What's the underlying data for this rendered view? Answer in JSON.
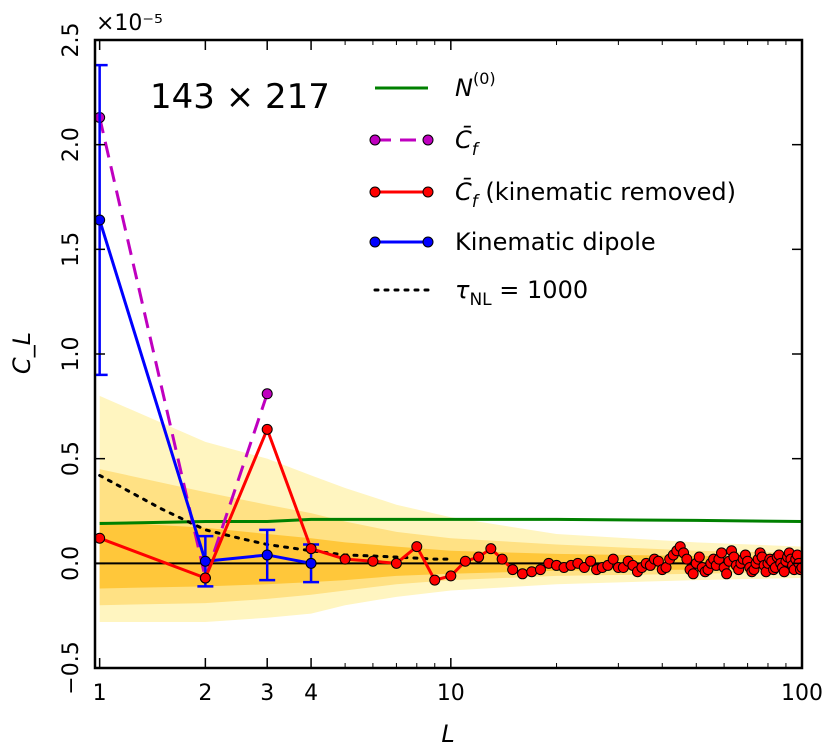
{
  "chart_data": {
    "type": "line",
    "panel_label": "143 × 217",
    "xlabel": "L",
    "ylabel": "C_L",
    "x_scale": "log",
    "xlim": [
      0.97,
      100
    ],
    "ylim": [
      -0.5,
      2.5
    ],
    "y_multiplier": "×10⁻⁵",
    "x_ticks": [
      1,
      2,
      3,
      4,
      10,
      100
    ],
    "x_tick_labels": [
      "1",
      "2",
      "3",
      "4",
      "10",
      "100"
    ],
    "y_ticks": [
      -0.5,
      0.0,
      0.5,
      1.0,
      1.5,
      2.0,
      2.5
    ],
    "y_tick_labels": [
      "−0.5",
      "0.0",
      "0.5",
      "1.0",
      "1.5",
      "2.0",
      "2.5"
    ],
    "legend": {
      "placement": "top-right",
      "entries": [
        {
          "label_main": "N",
          "label_sup": "(0)",
          "label_rest": "",
          "color": "#008000",
          "style": "solid",
          "marker": "none"
        },
        {
          "label_main": "C̄",
          "label_sub": "f",
          "label_rest": "",
          "color": "#bf00bf",
          "style": "dashed",
          "marker": "circle"
        },
        {
          "label_main": "C̄",
          "label_sub": "f",
          "label_rest": " (kinematic removed)",
          "color": "#ff0000",
          "style": "solid",
          "marker": "circle"
        },
        {
          "label_main": "Kinematic dipole",
          "label_rest": "",
          "color": "#0000ff",
          "style": "solid",
          "marker": "circle"
        },
        {
          "label_main": "τ",
          "label_sub": "NL",
          "label_rest": " = 1000",
          "color": "#000000",
          "style": "dotted",
          "marker": "none"
        }
      ]
    },
    "bands": {
      "outer": {
        "color": "#fff5c0",
        "upper": [
          [
            1,
            0.8
          ],
          [
            2,
            0.58
          ],
          [
            3,
            0.5
          ],
          [
            4,
            0.42
          ],
          [
            5,
            0.36
          ],
          [
            7,
            0.28
          ],
          [
            10,
            0.22
          ],
          [
            20,
            0.14
          ],
          [
            50,
            0.1
          ],
          [
            100,
            0.08
          ]
        ],
        "lower": [
          [
            1,
            -0.28
          ],
          [
            2,
            -0.28
          ],
          [
            3,
            -0.26
          ],
          [
            4,
            -0.24
          ],
          [
            5,
            -0.2
          ],
          [
            7,
            -0.16
          ],
          [
            10,
            -0.13
          ],
          [
            20,
            -0.1
          ],
          [
            50,
            -0.08
          ],
          [
            100,
            -0.07
          ]
        ]
      },
      "middle": {
        "color": "#ffe184",
        "upper": [
          [
            1,
            0.45
          ],
          [
            2,
            0.34
          ],
          [
            3,
            0.28
          ],
          [
            4,
            0.24
          ],
          [
            5,
            0.2
          ],
          [
            7,
            0.15
          ],
          [
            10,
            0.12
          ],
          [
            20,
            0.09
          ],
          [
            50,
            0.06
          ],
          [
            100,
            0.05
          ]
        ],
        "lower": [
          [
            1,
            -0.2
          ],
          [
            2,
            -0.19
          ],
          [
            3,
            -0.17
          ],
          [
            4,
            -0.15
          ],
          [
            5,
            -0.13
          ],
          [
            7,
            -0.1
          ],
          [
            10,
            -0.08
          ],
          [
            20,
            -0.06
          ],
          [
            50,
            -0.05
          ],
          [
            100,
            -0.04
          ]
        ]
      },
      "inner": {
        "color": "#ffc73a",
        "upper": [
          [
            1,
            0.2
          ],
          [
            2,
            0.17
          ],
          [
            3,
            0.14
          ],
          [
            4,
            0.12
          ],
          [
            5,
            0.1
          ],
          [
            7,
            0.08
          ],
          [
            10,
            0.06
          ],
          [
            20,
            0.045
          ],
          [
            50,
            0.035
          ],
          [
            100,
            0.03
          ]
        ],
        "lower": [
          [
            1,
            -0.12
          ],
          [
            2,
            -0.11
          ],
          [
            3,
            -0.1
          ],
          [
            4,
            -0.09
          ],
          [
            5,
            -0.08
          ],
          [
            7,
            -0.06
          ],
          [
            10,
            -0.05
          ],
          [
            20,
            -0.035
          ],
          [
            50,
            -0.03
          ],
          [
            100,
            -0.025
          ]
        ]
      }
    },
    "series": [
      {
        "name": "N^(0)",
        "color": "#008000",
        "style": "solid",
        "marker": "none",
        "x": [
          1,
          2,
          3,
          4,
          5,
          7,
          10,
          20,
          50,
          100
        ],
        "y": [
          0.19,
          0.2,
          0.2,
          0.21,
          0.21,
          0.21,
          0.21,
          0.21,
          0.205,
          0.2
        ]
      },
      {
        "name": "C̄_f",
        "color": "#bf00bf",
        "style": "dashed",
        "marker": "circle",
        "x": [
          1,
          2,
          3
        ],
        "y": [
          2.13,
          -0.07,
          0.81
        ]
      },
      {
        "name": "C̄_f (kinematic removed)",
        "color": "#ff0000",
        "style": "solid",
        "marker": "circle",
        "x": [
          1,
          2,
          3,
          4,
          5,
          6,
          7,
          8,
          9,
          10,
          11,
          12,
          13,
          14,
          15,
          16,
          17,
          18,
          19,
          20,
          21,
          22,
          23,
          24,
          25,
          26,
          27,
          28,
          29,
          30,
          31,
          32,
          33,
          34,
          35,
          36,
          37,
          38,
          39,
          40,
          41,
          42,
          43,
          44,
          45,
          46,
          47,
          48,
          49,
          50,
          51,
          52,
          53,
          54,
          55,
          56,
          57,
          58,
          59,
          60,
          61,
          62,
          63,
          64,
          65,
          66,
          67,
          68,
          69,
          70,
          71,
          72,
          73,
          74,
          75,
          76,
          77,
          78,
          79,
          80,
          81,
          82,
          83,
          84,
          85,
          86,
          87,
          88,
          89,
          90,
          91,
          92,
          93,
          94,
          95,
          96,
          97,
          98,
          99,
          100
        ],
        "y": [
          0.12,
          -0.07,
          0.64,
          0.07,
          0.02,
          0.01,
          0.0,
          0.08,
          -0.08,
          -0.06,
          0.01,
          0.03,
          0.07,
          0.02,
          -0.03,
          -0.05,
          -0.04,
          -0.03,
          0.0,
          -0.01,
          -0.02,
          -0.01,
          0.0,
          -0.02,
          0.01,
          -0.03,
          -0.02,
          -0.01,
          0.02,
          -0.02,
          -0.02,
          0.01,
          -0.01,
          -0.04,
          -0.02,
          0.0,
          -0.01,
          0.02,
          0.01,
          -0.03,
          -0.02,
          0.02,
          0.04,
          0.06,
          0.08,
          0.05,
          0.02,
          -0.03,
          -0.05,
          0.0,
          0.03,
          -0.02,
          -0.04,
          -0.03,
          0.0,
          0.02,
          -0.01,
          0.02,
          0.05,
          -0.02,
          -0.05,
          0.01,
          0.06,
          0.03,
          -0.01,
          -0.03,
          0.0,
          0.02,
          0.04,
          0.01,
          -0.02,
          -0.04,
          -0.03,
          0.0,
          0.02,
          0.05,
          0.03,
          -0.01,
          -0.04,
          0.0,
          0.02,
          0.01,
          -0.03,
          -0.02,
          0.03,
          0.04,
          0.0,
          -0.02,
          -0.04,
          0.01,
          0.03,
          0.05,
          0.02,
          -0.01,
          -0.03,
          0.02,
          0.04,
          0.0,
          -0.03,
          -0.02
        ]
      },
      {
        "name": "Kinematic dipole",
        "color": "#0000ff",
        "style": "solid",
        "marker": "circle",
        "x": [
          1,
          2,
          3,
          4
        ],
        "y": [
          1.64,
          0.01,
          0.04,
          0.0
        ],
        "err": [
          0.74,
          0.12,
          0.12,
          0.09
        ]
      },
      {
        "name": "τ_NL = 1000",
        "color": "#000000",
        "style": "dotted",
        "marker": "none",
        "x": [
          1,
          1.5,
          2,
          2.5,
          3,
          4,
          5,
          6,
          7,
          8,
          9,
          10
        ],
        "y": [
          0.42,
          0.26,
          0.16,
          0.12,
          0.09,
          0.06,
          0.04,
          0.035,
          0.03,
          0.025,
          0.02,
          0.02
        ]
      }
    ]
  }
}
